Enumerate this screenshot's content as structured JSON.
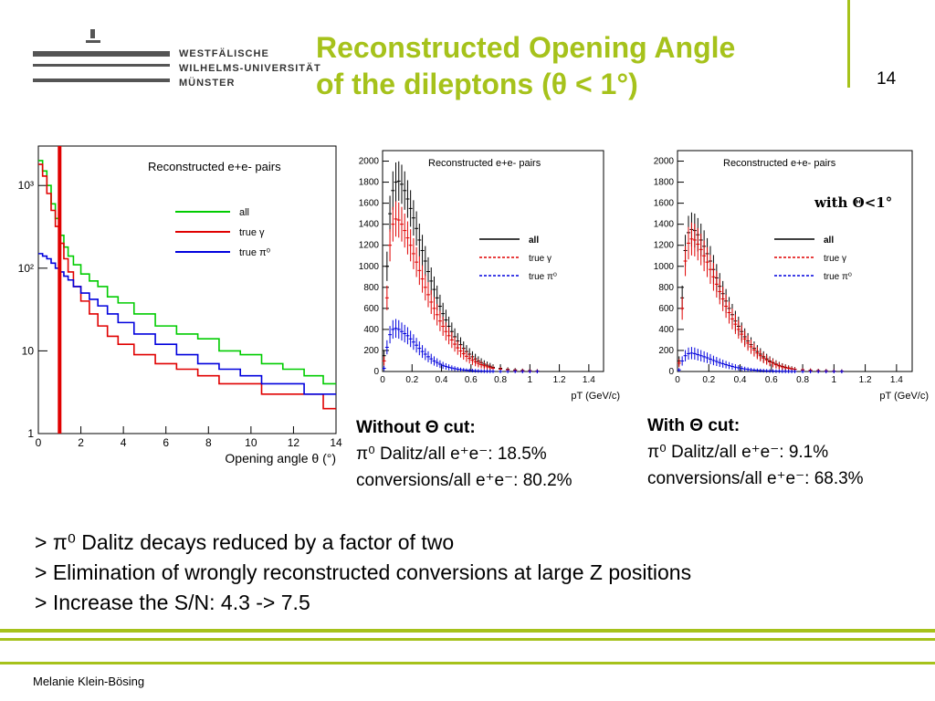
{
  "header": {
    "university_lines": [
      "Westfälische",
      "Wilhelms-Universität",
      "Münster"
    ],
    "title_lines": [
      "Reconstructed Opening Angle",
      "of the dileptons (θ < 1°)"
    ],
    "page_number": "14"
  },
  "colors": {
    "accent": "#a6c21b",
    "all": "#00cc00",
    "true_gamma": "#e00000",
    "true_pi0": "#0000dd"
  },
  "chart_data": [
    {
      "type": "line",
      "title": "Reconstructed e+e- pairs",
      "xlabel": "Opening angle θ (°)",
      "ylabel": "",
      "y_scale": "log",
      "xlim": [
        0,
        14
      ],
      "ylim": [
        1,
        3000
      ],
      "x_ticks": [
        "0",
        "2",
        "4",
        "6",
        "8",
        "10",
        "12",
        "14"
      ],
      "y_ticks": [
        "1",
        "10",
        "10²",
        "10³"
      ],
      "cut_line_x": 1,
      "legend": [
        "all",
        "true γ",
        "true π⁰"
      ],
      "x": [
        0.1,
        0.3,
        0.5,
        0.7,
        0.9,
        1.1,
        1.3,
        1.5,
        1.8,
        2.2,
        2.6,
        3.0,
        3.5,
        4.0,
        5.0,
        6.0,
        7.0,
        8.0,
        9.0,
        10.0,
        11.0,
        12.0,
        13.0,
        13.8
      ],
      "series": [
        {
          "name": "all",
          "values": [
            2000,
            1500,
            1000,
            600,
            400,
            250,
            180,
            140,
            110,
            85,
            70,
            60,
            45,
            38,
            28,
            20,
            16,
            14,
            10,
            9,
            7,
            6,
            5,
            4
          ]
        },
        {
          "name": "true γ",
          "values": [
            1800,
            1300,
            800,
            500,
            320,
            200,
            130,
            90,
            60,
            40,
            28,
            20,
            15,
            12,
            9,
            7,
            6,
            5,
            4,
            4,
            3,
            3,
            3,
            2
          ]
        },
        {
          "name": "true π⁰",
          "values": [
            150,
            140,
            130,
            115,
            100,
            90,
            80,
            72,
            60,
            50,
            42,
            35,
            28,
            22,
            16,
            12,
            9,
            7,
            6,
            5,
            4,
            4,
            3,
            3
          ]
        }
      ]
    },
    {
      "type": "scatter",
      "title": "Reconstructed e+e- pairs",
      "xlabel": "pT (GeV/c)",
      "ylabel": "",
      "xlim": [
        0,
        1.5
      ],
      "ylim": [
        0,
        2100
      ],
      "x_ticks": [
        "0",
        "0.2",
        "0.4",
        "0.6",
        "0.8",
        "1",
        "1.2",
        "1.4"
      ],
      "y_ticks": [
        "200",
        "400",
        "600",
        "800",
        "1000",
        "1200",
        "1400",
        "1600",
        "1800",
        "2000"
      ],
      "legend": [
        "all",
        "true γ",
        "true π⁰"
      ],
      "x": [
        0.01,
        0.03,
        0.05,
        0.07,
        0.09,
        0.11,
        0.13,
        0.15,
        0.17,
        0.19,
        0.21,
        0.23,
        0.25,
        0.27,
        0.29,
        0.31,
        0.33,
        0.35,
        0.37,
        0.39,
        0.41,
        0.43,
        0.45,
        0.47,
        0.49,
        0.51,
        0.53,
        0.55,
        0.57,
        0.59,
        0.61,
        0.63,
        0.65,
        0.67,
        0.69,
        0.71,
        0.73,
        0.75,
        0.8,
        0.85,
        0.9,
        0.95,
        1.0,
        1.05
      ],
      "series": [
        {
          "name": "all",
          "values": [
            150,
            1000,
            1500,
            1720,
            1800,
            1810,
            1780,
            1720,
            1640,
            1550,
            1460,
            1360,
            1250,
            1150,
            1050,
            950,
            860,
            780,
            700,
            620,
            550,
            490,
            430,
            380,
            330,
            290,
            255,
            220,
            190,
            165,
            140,
            120,
            100,
            85,
            70,
            60,
            50,
            40,
            30,
            20,
            15,
            10,
            8,
            5
          ]
        },
        {
          "name": "true γ",
          "values": [
            100,
            700,
            1200,
            1400,
            1450,
            1440,
            1400,
            1340,
            1270,
            1200,
            1120,
            1040,
            960,
            880,
            800,
            730,
            660,
            600,
            540,
            480,
            430,
            380,
            340,
            300,
            260,
            225,
            195,
            170,
            145,
            125,
            108,
            92,
            78,
            65,
            55,
            45,
            38,
            30,
            22,
            15,
            10,
            7,
            5,
            3
          ]
        },
        {
          "name": "true π⁰",
          "values": [
            30,
            230,
            350,
            400,
            410,
            400,
            380,
            360,
            340,
            310,
            280,
            250,
            220,
            190,
            165,
            140,
            120,
            100,
            85,
            70,
            58,
            48,
            40,
            33,
            27,
            22,
            18,
            15,
            12,
            10,
            8,
            6,
            5,
            4,
            3,
            3,
            2,
            2,
            1,
            1,
            1,
            0,
            0,
            0
          ]
        }
      ]
    },
    {
      "type": "scatter",
      "title": "Reconstructed e+e- pairs",
      "annotation": "with Θ<1°",
      "xlabel": "pT (GeV/c)",
      "ylabel": "",
      "xlim": [
        0,
        1.5
      ],
      "ylim": [
        0,
        2100
      ],
      "x_ticks": [
        "0",
        "0.2",
        "0.4",
        "0.6",
        "0.8",
        "1",
        "1.2",
        "1.4"
      ],
      "y_ticks": [
        "200",
        "400",
        "600",
        "800",
        "1000",
        "1200",
        "1400",
        "1600",
        "1800",
        "2000"
      ],
      "legend": [
        "all",
        "true γ",
        "true π⁰"
      ],
      "x": [
        0.01,
        0.03,
        0.05,
        0.07,
        0.09,
        0.11,
        0.13,
        0.15,
        0.17,
        0.19,
        0.21,
        0.23,
        0.25,
        0.27,
        0.29,
        0.31,
        0.33,
        0.35,
        0.37,
        0.39,
        0.41,
        0.43,
        0.45,
        0.47,
        0.49,
        0.51,
        0.53,
        0.55,
        0.57,
        0.59,
        0.61,
        0.63,
        0.65,
        0.67,
        0.69,
        0.71,
        0.73,
        0.75,
        0.8,
        0.85,
        0.9,
        0.95,
        1.0,
        1.05
      ],
      "series": [
        {
          "name": "all",
          "values": [
            100,
            700,
            1150,
            1320,
            1350,
            1340,
            1300,
            1250,
            1190,
            1120,
            1050,
            970,
            890,
            810,
            740,
            670,
            600,
            540,
            480,
            430,
            380,
            330,
            290,
            255,
            220,
            190,
            165,
            140,
            120,
            100,
            85,
            70,
            58,
            48,
            40,
            33,
            27,
            22,
            16,
            11,
            8,
            6,
            4,
            3
          ]
        },
        {
          "name": "true γ",
          "values": [
            80,
            600,
            1050,
            1220,
            1260,
            1250,
            1210,
            1160,
            1100,
            1040,
            970,
            900,
            830,
            760,
            690,
            620,
            560,
            500,
            450,
            400,
            355,
            310,
            270,
            235,
            205,
            175,
            150,
            128,
            110,
            92,
            78,
            64,
            53,
            44,
            36,
            30,
            24,
            19,
            14,
            10,
            7,
            5,
            3,
            2
          ]
        },
        {
          "name": "true π⁰",
          "values": [
            15,
            100,
            150,
            170,
            175,
            170,
            160,
            150,
            140,
            130,
            118,
            105,
            95,
            84,
            74,
            65,
            56,
            48,
            41,
            35,
            29,
            24,
            20,
            16,
            13,
            11,
            9,
            7,
            6,
            5,
            4,
            3,
            3,
            2,
            2,
            1,
            1,
            1,
            1,
            0,
            0,
            0,
            0,
            0
          ]
        }
      ]
    }
  ],
  "captions": {
    "without": {
      "heading": "Without Θ cut:",
      "dalitz": "π⁰ Dalitz/all e⁺e⁻: 18.5%",
      "conversions": "conversions/all e⁺e⁻: 80.2%"
    },
    "with": {
      "heading": "With Θ cut:",
      "dalitz": "π⁰ Dalitz/all e⁺e⁻: 9.1%",
      "conversions": "conversions/all e⁺e⁻: 68.3%"
    }
  },
  "bullets": [
    "> π⁰ Dalitz decays reduced by a factor of two",
    "> Elimination of wrongly reconstructed  conversions at large Z positions",
    "> Increase the S/N: 4.3 -> 7.5"
  ],
  "footer": {
    "author": "Melanie Klein-Bösing"
  }
}
